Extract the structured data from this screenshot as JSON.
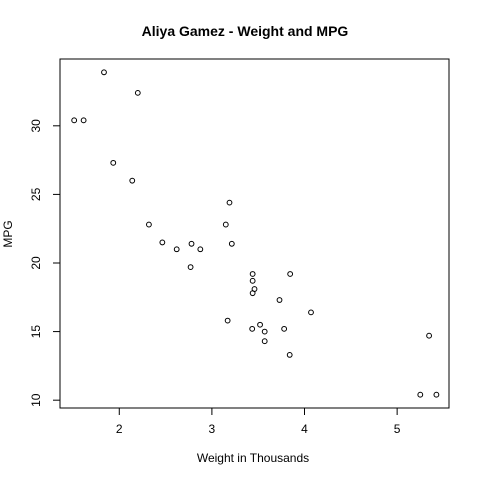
{
  "chart_data": {
    "type": "scatter",
    "title": "Aliya Gamez - Weight and MPG",
    "xlabel": "Weight in Thousands",
    "ylabel": "MPG",
    "xlim": [
      1.36,
      5.56
    ],
    "ylim": [
      9.43,
      34.87
    ],
    "x_ticks": [
      2,
      3,
      4,
      5
    ],
    "y_ticks": [
      10,
      15,
      20,
      25,
      30
    ],
    "grid": false,
    "legend": "none",
    "points": [
      {
        "x": 2.62,
        "y": 21.0
      },
      {
        "x": 2.875,
        "y": 21.0
      },
      {
        "x": 2.32,
        "y": 22.8
      },
      {
        "x": 3.215,
        "y": 21.4
      },
      {
        "x": 3.44,
        "y": 18.7
      },
      {
        "x": 3.46,
        "y": 18.1
      },
      {
        "x": 3.57,
        "y": 14.3
      },
      {
        "x": 3.19,
        "y": 24.4
      },
      {
        "x": 3.15,
        "y": 22.8
      },
      {
        "x": 3.44,
        "y": 19.2
      },
      {
        "x": 3.44,
        "y": 17.8
      },
      {
        "x": 4.07,
        "y": 16.4
      },
      {
        "x": 3.73,
        "y": 17.3
      },
      {
        "x": 3.78,
        "y": 15.2
      },
      {
        "x": 5.25,
        "y": 10.4
      },
      {
        "x": 5.424,
        "y": 10.4
      },
      {
        "x": 5.345,
        "y": 14.7
      },
      {
        "x": 2.2,
        "y": 32.4
      },
      {
        "x": 1.615,
        "y": 30.4
      },
      {
        "x": 1.835,
        "y": 33.9
      },
      {
        "x": 2.465,
        "y": 21.5
      },
      {
        "x": 3.52,
        "y": 15.5
      },
      {
        "x": 3.435,
        "y": 15.2
      },
      {
        "x": 3.84,
        "y": 13.3
      },
      {
        "x": 3.845,
        "y": 19.2
      },
      {
        "x": 1.935,
        "y": 27.3
      },
      {
        "x": 2.14,
        "y": 26.0
      },
      {
        "x": 1.513,
        "y": 30.4
      },
      {
        "x": 3.17,
        "y": 15.8
      },
      {
        "x": 2.77,
        "y": 19.7
      },
      {
        "x": 3.57,
        "y": 15.0
      },
      {
        "x": 2.78,
        "y": 21.4
      }
    ]
  }
}
